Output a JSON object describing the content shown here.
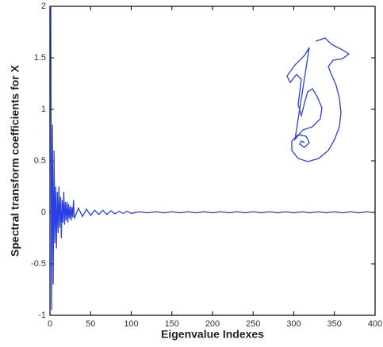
{
  "chart_data": {
    "type": "line",
    "xlabel": "Eigenvalue Indexes",
    "ylabel": "Spectral transform coefficients for X",
    "color": "#2a3fe6",
    "x": [
      1,
      2,
      3,
      4,
      5,
      6,
      7,
      8,
      9,
      10,
      11,
      12,
      13,
      14,
      15,
      16,
      17,
      18,
      19,
      20,
      21,
      22,
      23,
      24,
      25,
      26,
      27,
      28,
      29,
      30,
      35,
      40,
      45,
      50,
      55,
      60,
      65,
      70,
      75,
      80,
      85,
      90,
      95,
      100,
      110,
      120,
      130,
      140,
      150,
      160,
      170,
      180,
      190,
      200,
      210,
      220,
      230,
      240,
      250,
      260,
      270,
      280,
      290,
      300,
      310,
      320,
      330,
      340,
      350,
      360,
      370,
      380,
      390,
      400
    ],
    "values": [
      2,
      -0.95,
      0.85,
      -0.7,
      0.6,
      -0.3,
      0.25,
      -0.35,
      0.2,
      -0.2,
      0.25,
      -0.15,
      0.15,
      -0.25,
      0.12,
      -0.1,
      0.2,
      -0.12,
      0.1,
      -0.08,
      0.1,
      -0.1,
      0.08,
      -0.06,
      0.06,
      -0.08,
      0.05,
      -0.05,
      0.12,
      -0.06,
      0.04,
      -0.04,
      0.03,
      -0.03,
      0.02,
      -0.02,
      0.02,
      -0.02,
      0.015,
      -0.015,
      0.01,
      -0.01,
      0.01,
      -0.01,
      0.005,
      -0.005,
      0.005,
      -0.005,
      0.005,
      -0.005,
      0.005,
      -0.005,
      0.005,
      -0.005,
      0.005,
      -0.005,
      0.005,
      -0.005,
      0.005,
      -0.005,
      0.005,
      -0.005,
      0.005,
      -0.005,
      0.005,
      -0.005,
      0.005,
      -0.005,
      0.005,
      -0.005,
      0.005,
      -0.005,
      0.005,
      -0.005
    ],
    "xlim": [
      0,
      400
    ],
    "xticks": [
      0,
      50,
      100,
      150,
      200,
      250,
      300,
      350,
      400
    ],
    "ylim": [
      -1,
      2
    ],
    "yticks": [
      -1,
      -0.5,
      0,
      0.5,
      1,
      1.5,
      2
    ]
  }
}
